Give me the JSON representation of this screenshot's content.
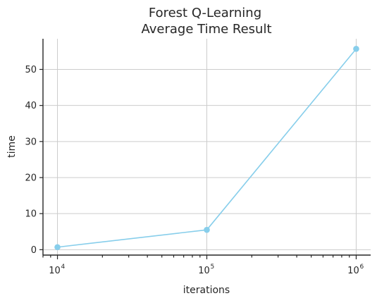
{
  "chart_data": {
    "type": "line",
    "title_lines": [
      "Forest Q-Learning",
      "Average Time Result"
    ],
    "xlabel": "iterations",
    "ylabel": "time",
    "x_scale": "log",
    "xlim": [
      8000,
      1250000
    ],
    "ylim": [
      -1.5,
      58.5
    ],
    "x_major_ticks": [
      {
        "value": 10000,
        "base": "10",
        "exp": "4"
      },
      {
        "value": 100000,
        "base": "10",
        "exp": "5"
      },
      {
        "value": 1000000,
        "base": "10",
        "exp": "6"
      }
    ],
    "y_ticks": [
      0,
      10,
      20,
      30,
      40,
      50
    ],
    "grid": true,
    "series": [
      {
        "x": [
          10000,
          100000,
          1000000
        ],
        "y": [
          0.7,
          5.5,
          55.7
        ],
        "color": "#87CEEB",
        "marker": "circle"
      }
    ]
  }
}
